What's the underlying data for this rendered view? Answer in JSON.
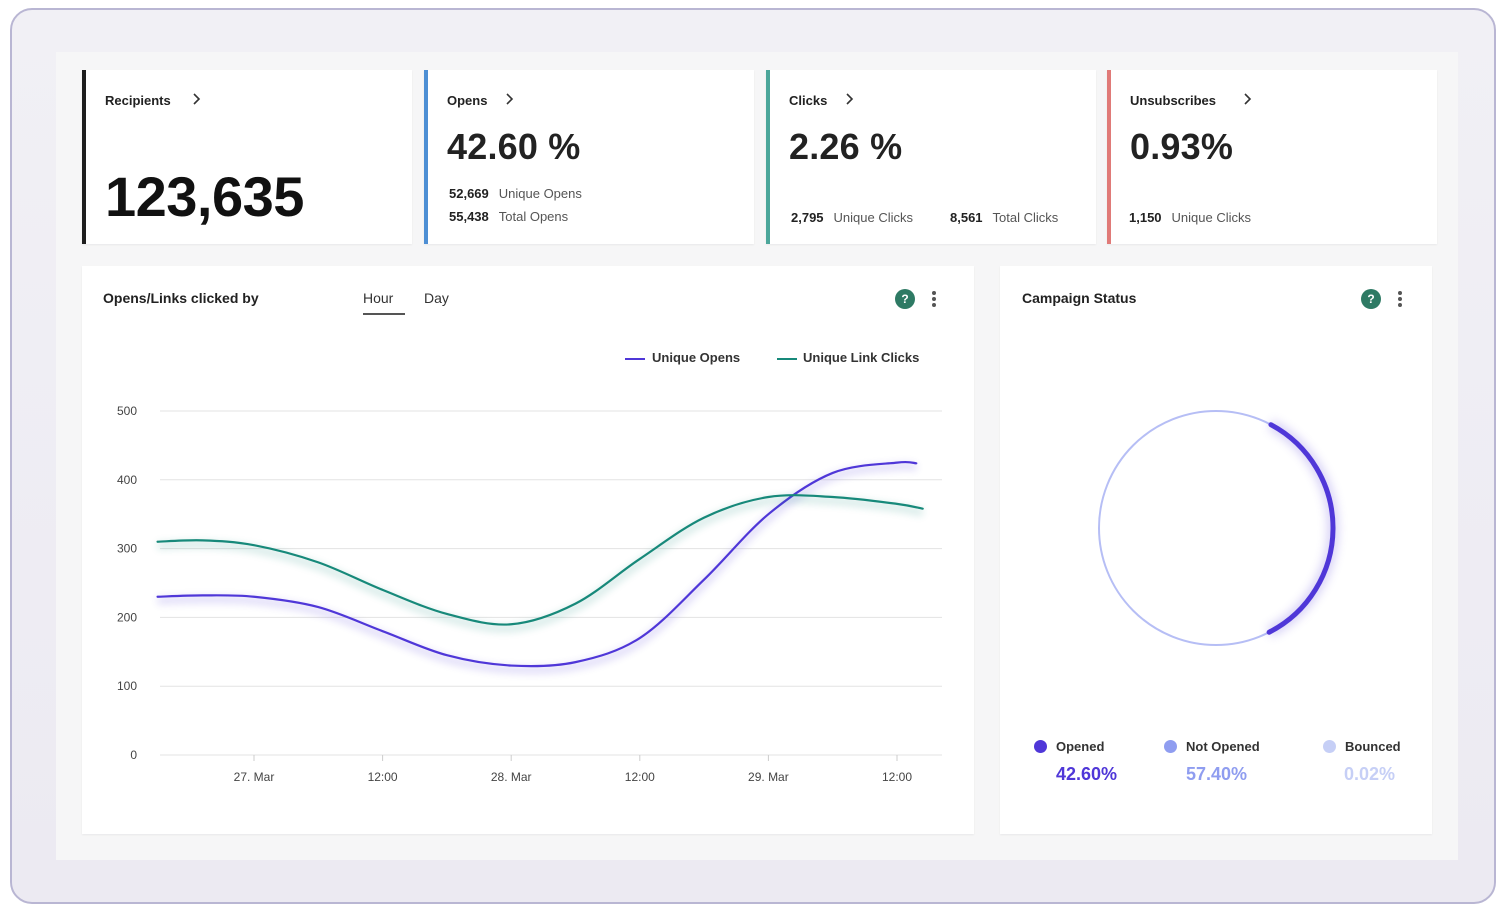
{
  "stats": {
    "recipients": {
      "title": "Recipients",
      "value": "123,635",
      "accent": "#1e1e1e"
    },
    "opens": {
      "title": "Opens",
      "value": "42.60 %",
      "accent": "#4e8fd4",
      "unique_count": "52,669",
      "unique_label": "Unique Opens",
      "total_count": "55,438",
      "total_label": "Total Opens"
    },
    "clicks": {
      "title": "Clicks",
      "value": "2.26 %",
      "accent": "#4ca69a",
      "unique_count": "2,795",
      "unique_label": "Unique Clicks",
      "total_count": "8,561",
      "total_label": "Total Clicks"
    },
    "unsubscribes": {
      "title": "Unsubscribes",
      "value": "0.93%",
      "accent": "#e07a78",
      "unique_count": "1,150",
      "unique_label": "Unique Clicks"
    }
  },
  "opens_chart": {
    "title": "Opens/Links clicked by",
    "tabs": [
      {
        "label": "Hour",
        "active": true
      },
      {
        "label": "Day",
        "active": false
      }
    ],
    "help_icon": "question-icon",
    "menu_icon": "kebab-icon"
  },
  "chart_data": {
    "type": "line",
    "x": [
      "27. Mar",
      "12:00",
      "28. Mar",
      "12:00",
      "29. Mar",
      "12:00"
    ],
    "xlim_index": [
      -0.75,
      5.2
    ],
    "ylim": [
      0,
      500
    ],
    "yticks": [
      0,
      100,
      200,
      300,
      400,
      500
    ],
    "grid": true,
    "legend_position": "top-right",
    "series": [
      {
        "name": "Unique Opens",
        "color": "#4f37d8",
        "points": [
          [
            -0.75,
            230
          ],
          [
            -0.4,
            232
          ],
          [
            0,
            230
          ],
          [
            0.5,
            215
          ],
          [
            1,
            180
          ],
          [
            1.5,
            145
          ],
          [
            2,
            130
          ],
          [
            2.5,
            135
          ],
          [
            3,
            170
          ],
          [
            3.5,
            255
          ],
          [
            4,
            350
          ],
          [
            4.5,
            410
          ],
          [
            5,
            425
          ],
          [
            5.15,
            424
          ]
        ]
      },
      {
        "name": "Unique Link Clicks",
        "color": "#17897a",
        "points": [
          [
            -0.75,
            310
          ],
          [
            -0.4,
            312
          ],
          [
            0,
            305
          ],
          [
            0.5,
            280
          ],
          [
            1,
            240
          ],
          [
            1.5,
            205
          ],
          [
            2,
            190
          ],
          [
            2.5,
            220
          ],
          [
            3,
            285
          ],
          [
            3.5,
            345
          ],
          [
            4,
            375
          ],
          [
            4.5,
            375
          ],
          [
            5,
            365
          ],
          [
            5.2,
            358
          ]
        ]
      }
    ]
  },
  "status": {
    "title": "Campaign Status",
    "help_icon": "question-icon",
    "menu_icon": "kebab-icon",
    "donut": {
      "opened_fraction": 0.426,
      "colors": {
        "opened": "#4f37d8",
        "not_opened": "#a9b3f3",
        "bounced": "#c6cff6"
      }
    },
    "legend": [
      {
        "label": "Opened",
        "value": "42.60%",
        "color": "#4f37d8"
      },
      {
        "label": "Not Opened",
        "value": "57.40%",
        "color": "#8f9df0"
      },
      {
        "label": "Bounced",
        "value": "0.02%",
        "color": "#c6cff6"
      }
    ]
  }
}
